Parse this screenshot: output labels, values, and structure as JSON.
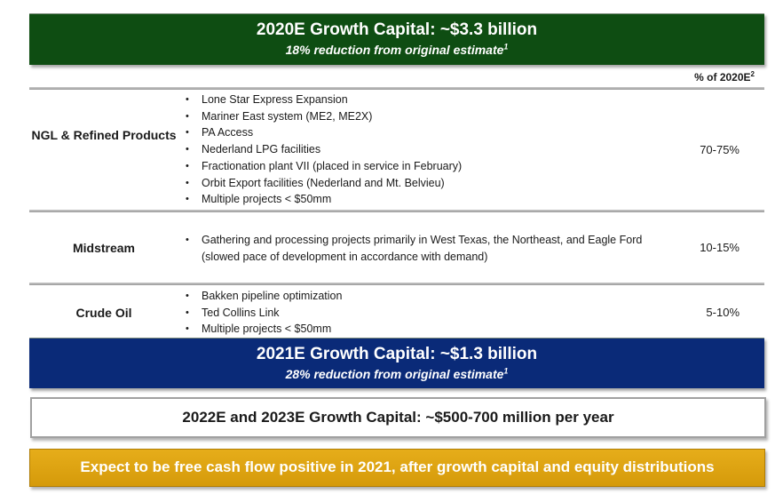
{
  "banner_2020": {
    "title": "2020E Growth Capital: ~$3.3 billion",
    "subtitle": "18% reduction from original estimate",
    "footnote": "1"
  },
  "table": {
    "column_header": "% of 2020E",
    "column_header_footnote": "2",
    "rows": [
      {
        "label": "NGL & Refined Products",
        "bullets": [
          "Lone Star Express Expansion",
          "Mariner East system (ME2, ME2X)",
          "PA Access",
          "Nederland LPG facilities",
          "Fractionation plant VII (placed in service in February)",
          "Orbit Export facilities (Nederland and Mt. Belvieu)",
          "Multiple projects < $50mm"
        ],
        "pct": "70-75%"
      },
      {
        "label": "Midstream",
        "bullets": [
          "Gathering and processing projects primarily in West Texas, the Northeast, and Eagle Ford (slowed pace of development in accordance with demand)"
        ],
        "pct": "10-15%"
      },
      {
        "label": "Crude Oil",
        "bullets": [
          "Bakken pipeline optimization",
          "Ted Collins Link",
          "Multiple projects < $50mm"
        ],
        "pct": "5-10%"
      }
    ]
  },
  "banner_2021": {
    "title": "2021E Growth Capital: ~$1.3 billion",
    "subtitle": "28% reduction from original estimate",
    "footnote": "1"
  },
  "box_2022": {
    "text": "2022E and 2023E Growth Capital: ~$500-700 million per year"
  },
  "box_fcf": {
    "text": "Expect to be free cash flow positive in 2021, after growth capital and equity distributions"
  },
  "colors": {
    "green_banner": "#0e4d12",
    "blue_banner": "#0a2a78",
    "gold_box": "#e0a612"
  }
}
